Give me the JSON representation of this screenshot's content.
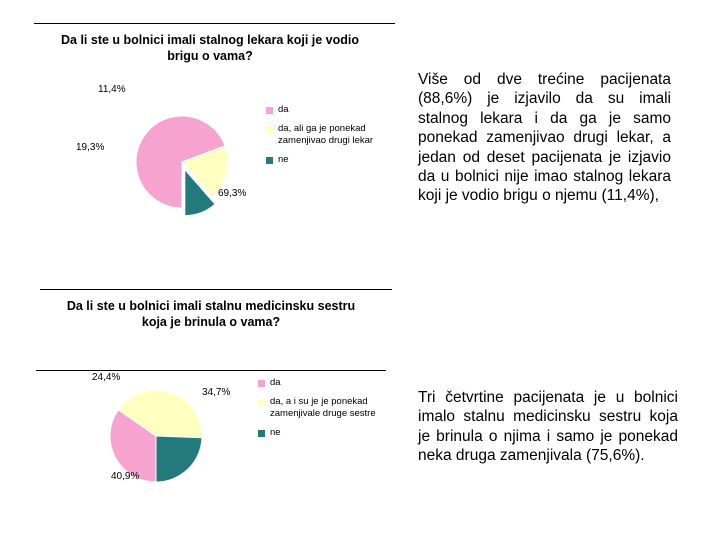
{
  "chart_data": [
    {
      "type": "pie",
      "title": "Da li ste u bolnici imali stalnog lekara koji je vodio brigu o vama?",
      "categories": [
        "da",
        "da, ali ga je ponekad\nzamenjivao drugi lekar",
        "ne"
      ],
      "values": [
        69.3,
        19.3,
        11.4
      ],
      "data_labels": [
        "69,3%",
        "19,3%",
        "11,4%"
      ],
      "colors": [
        "#f7a3d0",
        "#ffffc0",
        "#227a7a"
      ],
      "exploded": "ne",
      "legend": "right"
    },
    {
      "type": "pie",
      "title": "Da li ste u bolnici imali stalnu medicinsku sestru koja je brinula o vama?",
      "categories": [
        "da",
        "da, a i su je je ponekad\nzamenjivale druge sestre",
        "ne"
      ],
      "values": [
        34.7,
        40.9,
        24.4
      ],
      "data_labels": [
        "34,7%",
        "40,9%",
        "24,4%"
      ],
      "colors": [
        "#f7a3d0",
        "#ffffc0",
        "#227a7a"
      ],
      "legend": "right"
    }
  ],
  "text": {
    "paragraph1": "Više od dve trećine pacijenata (88,6%) je izjavilo da su imali stalnog lekara i da ga je samo ponekad zamenjivao drugi lekar, a jedan od deset pacijenata je izjavio da u bolnici nije imao stalnog lekara koji je vodio brigu o njemu (11,4%),",
    "paragraph2": "Tri četvrtine pacijenata je u bolnici imalo stalnu medicinsku sestru koja je brinula o njima i samo je ponekad neka druga zamenjivala (75,6%)."
  }
}
